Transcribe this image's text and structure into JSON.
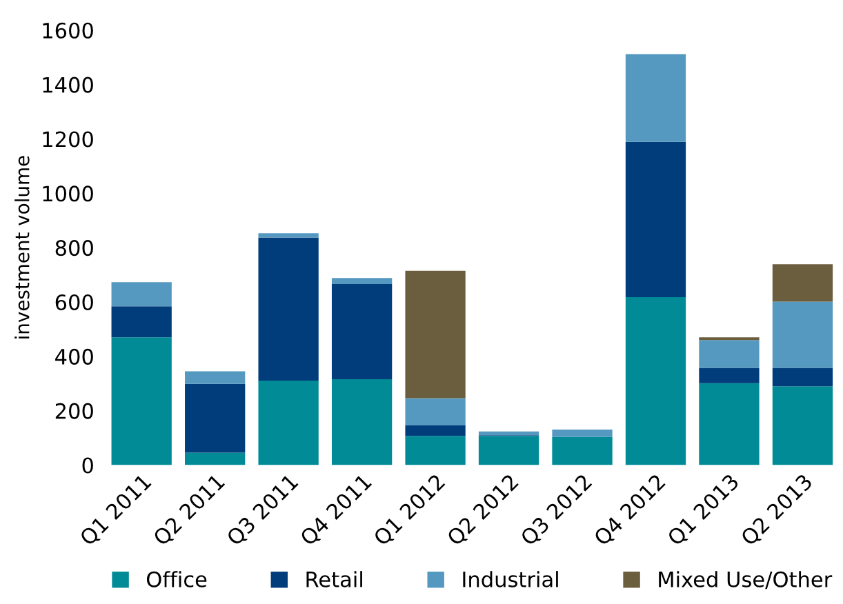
{
  "chart_data": {
    "type": "bar",
    "stacked": true,
    "ylabel": "investment volume",
    "categories": [
      "Q1 2011",
      "Q2 2011",
      "Q3 2011",
      "Q4 2011",
      "Q1 2012",
      "Q2 2012",
      "Q3 2012",
      "Q4 2012",
      "Q1 2013",
      "Q2 2013"
    ],
    "series": [
      {
        "name": "Office",
        "color": "#008b96",
        "values": [
          470,
          46,
          311,
          316,
          107,
          107,
          104,
          618,
          301,
          290
        ]
      },
      {
        "name": "Retail",
        "color": "#003d7a",
        "values": [
          114,
          253,
          526,
          350,
          39,
          3,
          0,
          571,
          57,
          68
        ]
      },
      {
        "name": "Industrial",
        "color": "#5599c0",
        "values": [
          89,
          46,
          16,
          22,
          100,
          14,
          27,
          323,
          102,
          243
        ]
      },
      {
        "name": "Mixed Use/Other",
        "color": "#6b5e3e",
        "values": [
          0,
          0,
          0,
          0,
          469,
          0,
          0,
          0,
          10,
          138
        ]
      }
    ],
    "ylim": [
      0,
      1600
    ],
    "yticks": [
      0,
      200,
      400,
      600,
      800,
      1000,
      1200,
      1400,
      1600
    ],
    "grid": false,
    "legend": "bottom"
  }
}
